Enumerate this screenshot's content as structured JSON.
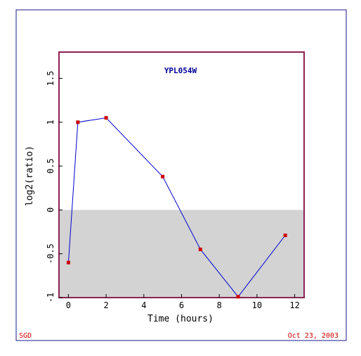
{
  "footer": {
    "left": "SGD",
    "right": "Oct 23, 2003"
  },
  "colors": {
    "frame": "#1a1a8c",
    "plot_border": "#8b2252",
    "line": "#0000cc",
    "marker": "#cc0000",
    "negative_region": "#d3d3d3",
    "footer_text": "#cc0000",
    "title_text": "#000099"
  },
  "chart_data": {
    "type": "line",
    "title": "YPL054W",
    "xlabel": "Time (hours)",
    "ylabel": "log2(ratio)",
    "xlim": [
      -0.5,
      12.5
    ],
    "ylim": [
      -1,
      1.8
    ],
    "xticks": [
      0,
      2,
      4,
      6,
      8,
      10,
      12
    ],
    "yticks": [
      -1,
      -0.5,
      0,
      0.5,
      1,
      1.5
    ],
    "xtick_labels": [
      "0",
      "2",
      "4",
      "6",
      "8",
      "10",
      "12"
    ],
    "ytick_labels": [
      "-1",
      "-0.5",
      "0",
      "0.5",
      "1",
      "1.5"
    ],
    "shaded_below_zero": true,
    "grid": false,
    "series": [
      {
        "x": [
          0,
          0.5,
          2,
          5,
          7,
          9,
          11.5
        ],
        "y": [
          -0.6,
          1.0,
          1.05,
          0.38,
          -0.45,
          -0.99,
          -0.29
        ]
      }
    ]
  }
}
